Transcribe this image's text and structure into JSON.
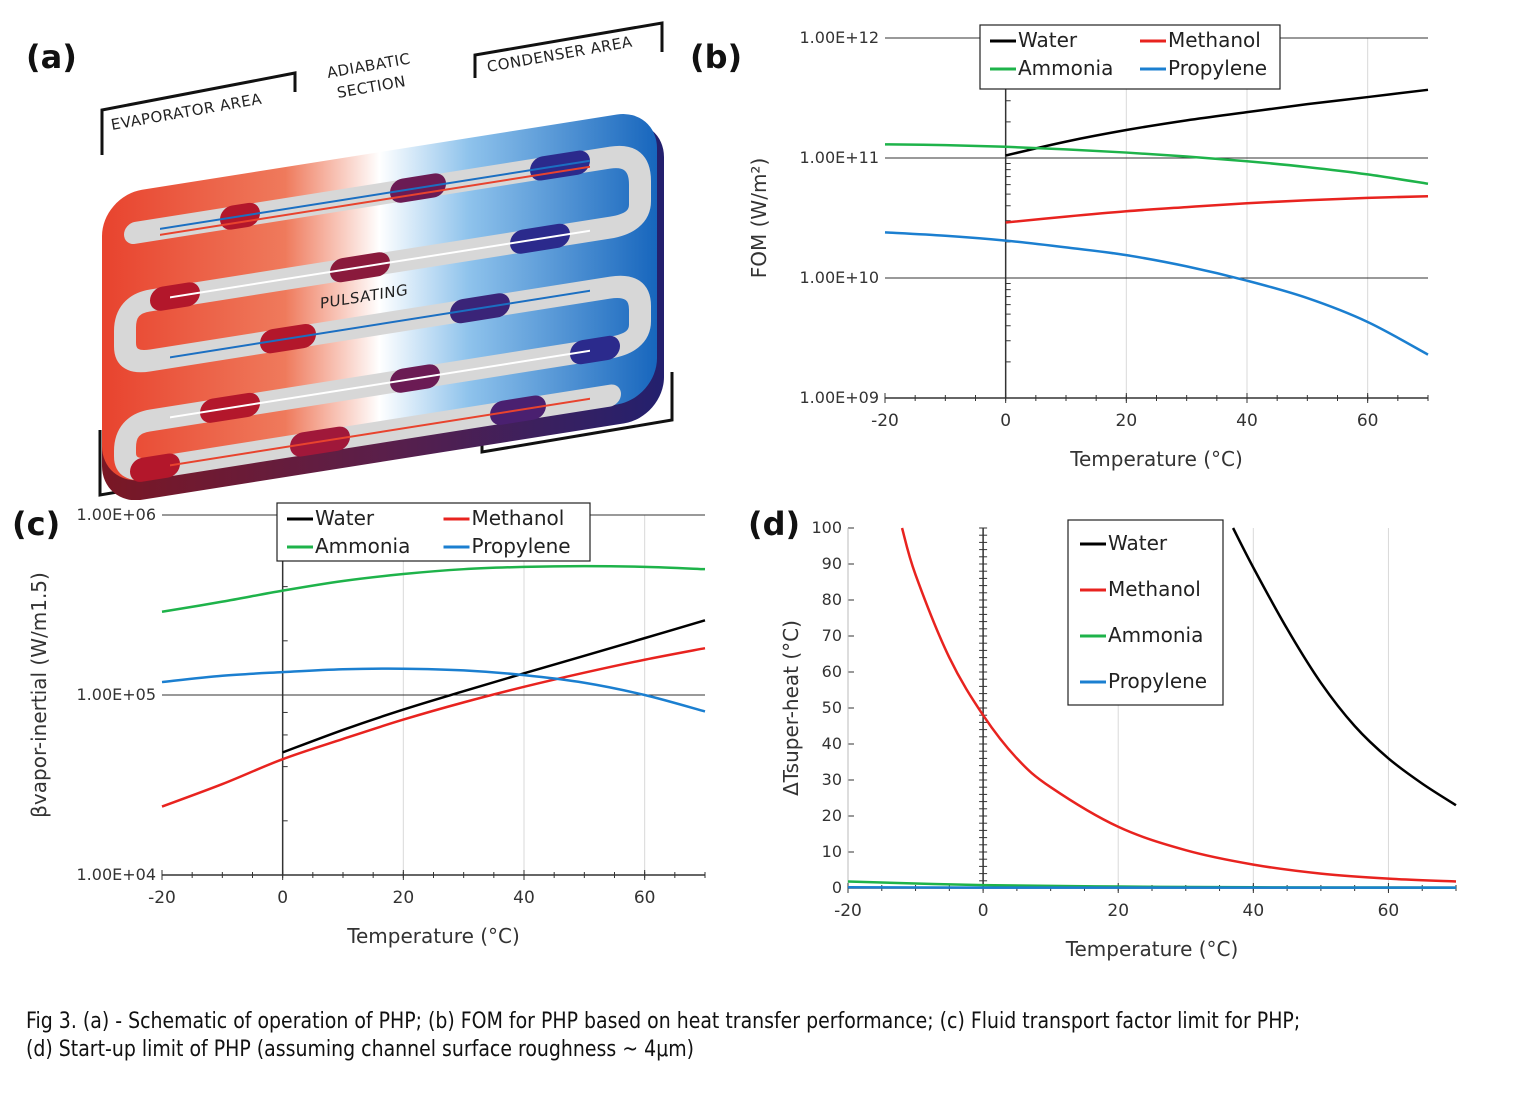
{
  "panels": {
    "a": "(a)",
    "b": "(b)",
    "c": "(c)",
    "d": "(d)"
  },
  "schematic": {
    "evaporator": "EVAPORATOR AREA",
    "adiabatic_line1": "ADIABATIC",
    "adiabatic_line2": "SECTION",
    "condenser": "CONDENSER AREA",
    "pulsating": "PULSATING",
    "colors": {
      "hot": "#e83a2b",
      "cold": "#1b6fc2",
      "slug_hot": "#b3172b",
      "slug_cold": "#2b2a8c",
      "tube": "#d9d9d9"
    }
  },
  "caption": {
    "line1": "Fig 3. (a) - Schematic of operation of PHP; (b) FOM for PHP based on heat transfer performance; (c) Fluid transport factor limit for PHP;",
    "line2": "(d) Start-up limit of PHP (assuming channel surface roughness ~ 4μm)"
  },
  "series_colors": {
    "Water": "#000000",
    "Methanol": "#e8231f",
    "Ammonia": "#1eb34a",
    "Propylene": "#1b7fd0"
  },
  "chart_data": [
    {
      "id": "b",
      "type": "line",
      "xlabel": "Temperature (°C)",
      "ylabel": "FOM (W/m²)",
      "yscale": "log",
      "xlim": [
        -20,
        70
      ],
      "ylim": [
        1000000000,
        1000000000000
      ],
      "xticks": [
        "-20",
        "0",
        "20",
        "40",
        "60"
      ],
      "yticks": [
        "1.00E+09",
        "1.00E+10",
        "1.00E+11",
        "1.00E+12"
      ],
      "legend": [
        "Water",
        "Methanol",
        "Ammonia",
        "Propylene"
      ],
      "legend_placement": "top",
      "series": [
        {
          "name": "Water",
          "x": [
            0,
            10,
            20,
            30,
            40,
            50,
            60,
            70
          ],
          "y": [
            105000000000,
            137000000000,
            171000000000,
            206000000000,
            241000000000,
            281000000000,
            322000000000,
            370000000000
          ]
        },
        {
          "name": "Methanol",
          "x": [
            0,
            10,
            20,
            30,
            40,
            50,
            60,
            70
          ],
          "y": [
            29000000000,
            32500000000,
            36000000000,
            39000000000,
            42000000000,
            44500000000,
            46500000000,
            48000000000
          ]
        },
        {
          "name": "Ammonia",
          "x": [
            -20,
            -10,
            0,
            10,
            20,
            30,
            40,
            50,
            60,
            70
          ],
          "y": [
            130000000000,
            128000000000,
            124000000000,
            118000000000,
            111000000000,
            103000000000,
            94000000000,
            84000000000,
            73000000000,
            61000000000
          ]
        },
        {
          "name": "Propylene",
          "x": [
            -20,
            -10,
            0,
            10,
            20,
            30,
            40,
            50,
            60,
            70
          ],
          "y": [
            24000000000,
            22500000000,
            20500000000,
            18000000000,
            15500000000,
            12500000000,
            9500000000,
            6800000000,
            4300000000,
            2300000000
          ]
        }
      ]
    },
    {
      "id": "c",
      "type": "line",
      "xlabel": "Temperature (°C)",
      "ylabel": "βvapor-inertial (W/m1.5)",
      "yscale": "log",
      "xlim": [
        -20,
        70
      ],
      "ylim": [
        10000,
        1000000
      ],
      "xticks": [
        "-20",
        "0",
        "20",
        "40",
        "60"
      ],
      "yticks": [
        "1.00E+04",
        "1.00E+05",
        "1.00E+06"
      ],
      "legend": [
        "Water",
        "Methanol",
        "Ammonia",
        "Propylene"
      ],
      "legend_placement": "top",
      "series": [
        {
          "name": "Water",
          "x": [
            0,
            10,
            20,
            30,
            40,
            50,
            60,
            70
          ],
          "y": [
            48000,
            64000,
            83000,
            105000,
            132000,
            165000,
            207000,
            260000
          ]
        },
        {
          "name": "Methanol",
          "x": [
            -20,
            -10,
            0,
            10,
            20,
            30,
            40,
            50,
            60,
            70
          ],
          "y": [
            24000,
            32000,
            44000,
            57000,
            73000,
            91000,
            111000,
            133000,
            157000,
            182000
          ]
        },
        {
          "name": "Ammonia",
          "x": [
            -20,
            -10,
            0,
            10,
            20,
            30,
            40,
            50,
            60,
            70
          ],
          "y": [
            290000,
            330000,
            380000,
            430000,
            470000,
            500000,
            515000,
            520000,
            515000,
            500000
          ]
        },
        {
          "name": "Propylene",
          "x": [
            -20,
            -10,
            0,
            10,
            20,
            30,
            40,
            50,
            60,
            70
          ],
          "y": [
            118000,
            128000,
            134000,
            139000,
            140000,
            137000,
            129000,
            117000,
            100000,
            81000
          ]
        }
      ]
    },
    {
      "id": "d",
      "type": "line",
      "xlabel": "Temperature (°C)",
      "ylabel": "ΔTsuper-heat (°C)",
      "xlim": [
        -20,
        70
      ],
      "ylim": [
        0,
        100
      ],
      "xticks": [
        "-20",
        "0",
        "20",
        "40",
        "60"
      ],
      "yticks": [
        "0",
        "10",
        "20",
        "30",
        "40",
        "50",
        "60",
        "70",
        "80",
        "90",
        "100"
      ],
      "legend": [
        "Water",
        "Methanol",
        "Ammonia",
        "Propylene"
      ],
      "legend_placement": "top-right",
      "series": [
        {
          "name": "Water",
          "x": [
            37,
            40,
            45,
            50,
            55,
            60,
            65,
            70
          ],
          "y": [
            100,
            89,
            72,
            57,
            45,
            36,
            29,
            23
          ]
        },
        {
          "name": "Methanol",
          "x": [
            -12,
            -10,
            -5,
            0,
            5,
            10,
            20,
            30,
            40,
            50,
            60,
            70
          ],
          "y": [
            100,
            87,
            64,
            48,
            36,
            28,
            17,
            10.5,
            6.5,
            4,
            2.6,
            1.8
          ]
        },
        {
          "name": "Ammonia",
          "x": [
            -20,
            0,
            20,
            40,
            70
          ],
          "y": [
            1.8,
            0.8,
            0.4,
            0.2,
            0.1
          ]
        },
        {
          "name": "Propylene",
          "x": [
            -20,
            0,
            20,
            40,
            70
          ],
          "y": [
            0.2,
            0.1,
            0.1,
            0.1,
            0.1
          ]
        }
      ]
    }
  ]
}
